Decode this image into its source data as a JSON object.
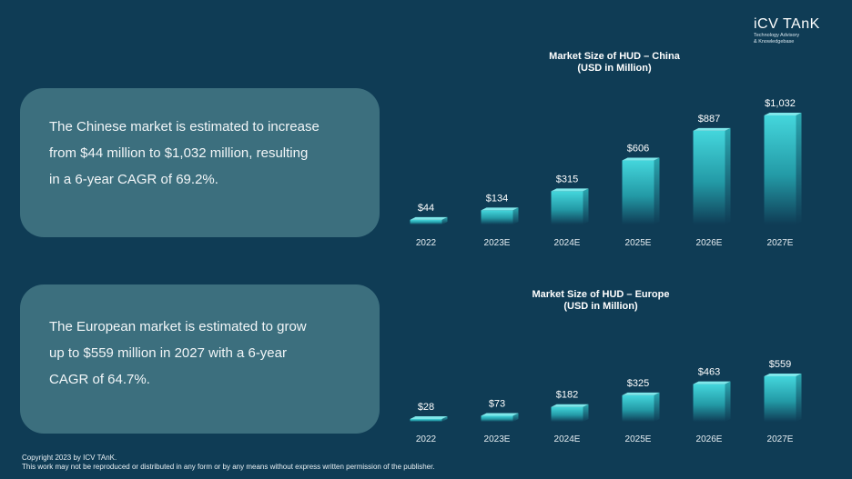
{
  "brand": {
    "name": "iCV TAnK",
    "tagline_line1": "Technology Advisory",
    "tagline_line2": "& Knowledgebase"
  },
  "notes": {
    "china": [
      "The Chinese market is estimated to increase",
      "from $44 million to $1,032 million, resulting",
      "in a 6-year CAGR of 69.2%."
    ],
    "europe": [
      "The European market is estimated to grow",
      "up to $559 million in 2027 with a 6-year",
      "CAGR of 64.7%."
    ]
  },
  "footer": {
    "line1": "Copyright  2023 by ICV TAnK.",
    "line2": "This work may not be reproduced or distributed in any form or by any means without express written permission of the publisher."
  },
  "colors": {
    "background": "#0f3c55",
    "bar_top": "#44d6dc",
    "bar_fade": "#0f3c55",
    "text_box": "#3c6f7e"
  },
  "chart_data": [
    {
      "type": "bar",
      "title": "Market Size of HUD – China",
      "subtitle": "(USD in Million)",
      "categories": [
        "2022",
        "2023E",
        "2024E",
        "2025E",
        "2026E",
        "2027E"
      ],
      "values": [
        44,
        134,
        315,
        606,
        887,
        1032
      ],
      "value_labels": [
        "$44",
        "$134",
        "$315",
        "$606",
        "$887",
        "$1,032"
      ],
      "ylim": [
        0,
        1032
      ],
      "grid": false,
      "legend": "none"
    },
    {
      "type": "bar",
      "title": "Market Size of HUD – Europe",
      "subtitle": "(USD in Million)",
      "categories": [
        "2022",
        "2023E",
        "2024E",
        "2025E",
        "2026E",
        "2027E"
      ],
      "values": [
        28,
        73,
        182,
        325,
        463,
        559
      ],
      "value_labels": [
        "$28",
        "$73",
        "$182",
        "$325",
        "$463",
        "$559"
      ],
      "ylim": [
        0,
        559
      ],
      "grid": false,
      "legend": "none"
    }
  ]
}
